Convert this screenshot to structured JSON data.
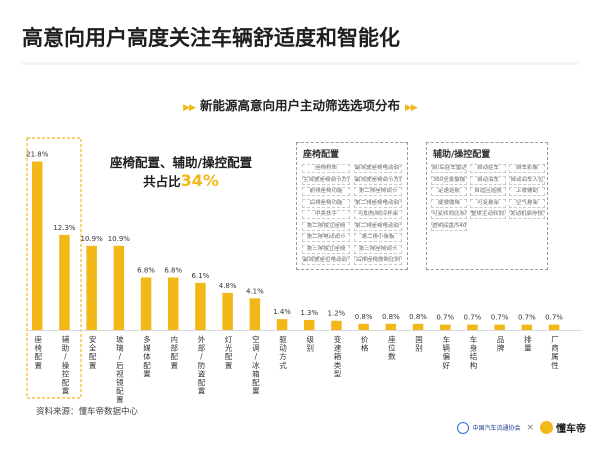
{
  "headline": "高意向用户高度关注车辆舒适度和智能化",
  "subtitle": "新能源高意向用户主动筛选选项分布",
  "subtitle_arrows": "▶▶",
  "callout": {
    "line1": "座椅配置、辅助/操控配置",
    "line2_prefix": "共占比",
    "line2_pct": "34%"
  },
  "source": "资料来源：懂车帝数据中心",
  "footer": {
    "association_name": "中国汽车流通协会",
    "separator": "×",
    "brand_name": "懂车帝"
  },
  "colors": {
    "bar": "#f2b818",
    "highlight_border": "#f2b818",
    "accent": "#f2b818"
  },
  "legend_seat": {
    "title": "座椅配置",
    "items": [
      "座椅材质",
      "副驾驶座椅电动调节",
      "主驾驶座椅调节方式",
      "副驾驶座椅调节方式",
      "前排座椅功能",
      "第二排座椅调节",
      "后排座椅功能",
      "第二排座椅电动调节",
      "中央扶手",
      "可加热/制冷杯架",
      "第二排独立座椅",
      "第二排座椅电动调节方式",
      "第二排电动调节",
      "第二排小桌板",
      "第三排独立座椅",
      "第三排座椅调节",
      "副驾驶座位电动调节",
      "后排座椅放倒比例"
    ]
  },
  "legend_assist": {
    "title": "辅助/操控配置",
    "items": [
      "前/后驻车雷达",
      "自动驻车",
      "倒车影像",
      "360全景摄像",
      "自动泊车",
      "自动泊车入位",
      "定速巡航",
      "自适应巡航",
      "上坡辅助",
      "陡坡缓降",
      "可变悬架",
      "空气悬架",
      "可变转向比系统",
      "整体主动转向系统",
      "发动机启停技术",
      "透明底盘/540",
      "",
      ""
    ]
  },
  "chart_data": {
    "type": "bar",
    "title": "新能源高意向用户主动筛选选项分布",
    "categories": [
      "座椅配置",
      "辅助/操控配置",
      "安全配置",
      "玻璃/后视镜配置",
      "多媒体配置",
      "内部配置",
      "外部/防盗配置",
      "灯光配置",
      "空调/冰箱配置",
      "驱动方式",
      "级别",
      "变速箱类型",
      "价格",
      "座位数",
      "国别",
      "车辆偏好",
      "车身结构",
      "品牌",
      "排量",
      "厂商属性"
    ],
    "value_labels": [
      "21.8%",
      "12.3%",
      "10.9%",
      "10.9%",
      "6.8%",
      "6.8%",
      "6.1%",
      "4.8%",
      "4.1%",
      "1.4%",
      "1.3%",
      "1.2%",
      "0.8%",
      "0.8%",
      "0.8%",
      "0.7%",
      "0.7%",
      "0.7%",
      "0.7%",
      "0.7%"
    ],
    "values": [
      21.8,
      12.3,
      10.9,
      10.9,
      6.8,
      6.8,
      6.1,
      4.8,
      4.1,
      1.4,
      1.3,
      1.2,
      0.8,
      0.8,
      0.8,
      0.7,
      0.7,
      0.7,
      0.7,
      0.7
    ],
    "highlighted_categories": [
      "座椅配置",
      "辅助/操控配置"
    ],
    "ylim": [
      0,
      22
    ],
    "xlabel": "",
    "ylabel": "",
    "grid": false,
    "legend": "none"
  }
}
